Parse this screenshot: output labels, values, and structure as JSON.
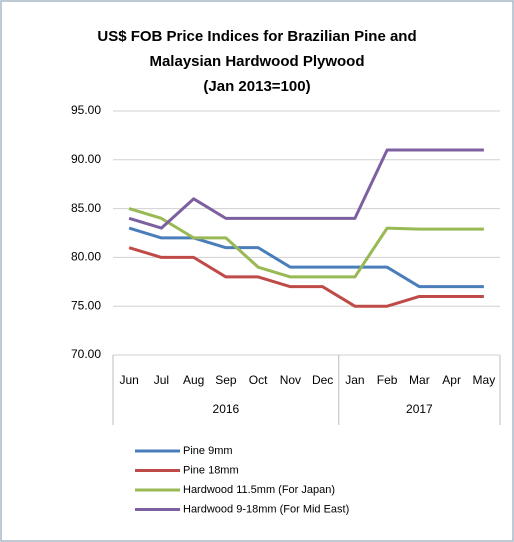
{
  "chart_data": {
    "type": "line",
    "title": [
      "US$ FOB Price Indices for Brazilian Pine and",
      "Malaysian Hardwood Plywood",
      "(Jan 2013=100)"
    ],
    "categories": [
      "Jun",
      "Jul",
      "Aug",
      "Sep",
      "Oct",
      "Nov",
      "Dec",
      "Jan",
      "Feb",
      "Mar",
      "Apr",
      "May"
    ],
    "x_groups": [
      {
        "label": "2016",
        "from": "Jun",
        "to": "Dec"
      },
      {
        "label": "2017",
        "from": "Jan",
        "to": "May"
      }
    ],
    "series": [
      {
        "name": "Pine 9mm",
        "color": "#4a7ebb",
        "values": [
          83,
          82,
          82,
          81,
          81,
          79,
          79,
          79,
          79,
          77,
          77,
          77
        ]
      },
      {
        "name": "Pine 18mm",
        "color": "#be4b48",
        "values": [
          81,
          80,
          80,
          78,
          78,
          77,
          77,
          75,
          75,
          76,
          76,
          76
        ]
      },
      {
        "name": "Hardwood 11.5mm (For Japan)",
        "color": "#98b954",
        "values": [
          85,
          84,
          82,
          82,
          79,
          78,
          78,
          78,
          83,
          82.9,
          82.9,
          82.9
        ]
      },
      {
        "name": "Hardwood 9-18mm (For Mid East)",
        "color": "#7d60a0",
        "values": [
          84,
          83,
          86,
          84,
          84,
          84,
          84,
          84,
          91,
          91,
          91,
          91
        ]
      }
    ],
    "ylim": [
      70,
      95
    ],
    "yticks": [
      {
        "value": 70,
        "label": "70.00"
      },
      {
        "value": 75,
        "label": "75.00"
      },
      {
        "value": 80,
        "label": "80.00"
      },
      {
        "value": 85,
        "label": "85.00"
      },
      {
        "value": 90,
        "label": "90.00"
      },
      {
        "value": 95,
        "label": "95.00"
      }
    ],
    "grid": true,
    "legend": "bottom"
  }
}
